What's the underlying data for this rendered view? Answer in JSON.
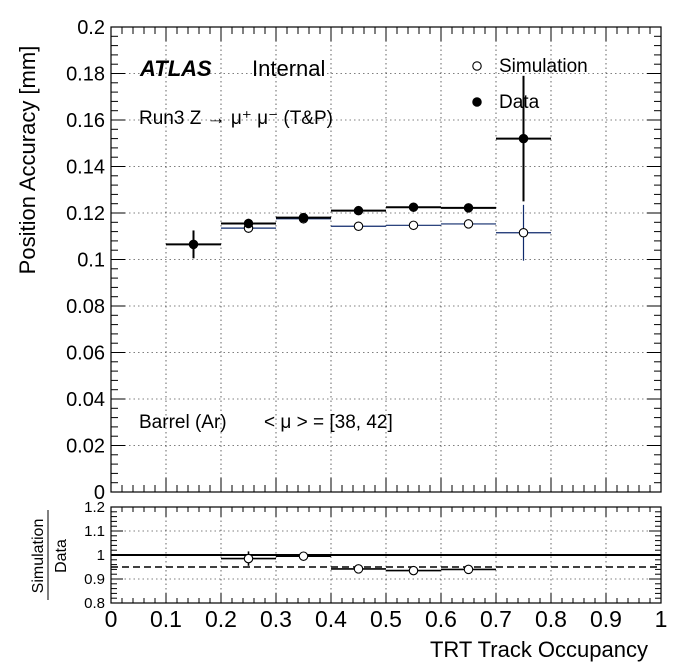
{
  "chart_data": [
    {
      "type": "scatter",
      "panel": "main",
      "ylabel": "Position Accuracy [mm]",
      "xlim": [
        0,
        1
      ],
      "ylim": [
        0,
        0.2
      ],
      "grid": true,
      "yticks": [
        "0",
        "0.02",
        "0.04",
        "0.06",
        "0.08",
        "0.1",
        "0.12",
        "0.14",
        "0.16",
        "0.18",
        "0.2"
      ],
      "legend_position": "top-right",
      "annotations": {
        "experiment": "ATLAS",
        "status": "Internal",
        "process": "Run3 Z → μ⁺ μ⁻ (T&P)",
        "region": "Barrel (Ar)",
        "pileup": "< μ > = [38, 42]"
      },
      "series": [
        {
          "name": "Simulation",
          "marker": "open-circle",
          "color": "#0f2a6b",
          "x": [
            0.25,
            0.35,
            0.45,
            0.55,
            0.65,
            0.75
          ],
          "xerr": 0.05,
          "y": [
            0.1135,
            0.1175,
            0.1143,
            0.1147,
            0.1153,
            0.1115
          ],
          "yerr": [
            0.002,
            0.0015,
            0.001,
            0.001,
            0.001,
            0.012
          ]
        },
        {
          "name": "Data",
          "marker": "filled-circle",
          "color": "#000000",
          "x": [
            0.15,
            0.25,
            0.35,
            0.45,
            0.55,
            0.65,
            0.75
          ],
          "xerr": 0.05,
          "y": [
            0.1065,
            0.1155,
            0.118,
            0.121,
            0.1225,
            0.1222,
            0.152
          ],
          "yerr": [
            0.006,
            0.002,
            0.0015,
            0.001,
            0.001,
            0.001,
            0.027
          ]
        }
      ]
    },
    {
      "type": "scatter",
      "panel": "ratio",
      "ylabel_numerator": "Simulation",
      "ylabel_denominator": "Data",
      "xlabel": "TRT Track Occupancy",
      "xlim": [
        0,
        1
      ],
      "ylim": [
        0.8,
        1.2
      ],
      "grid": true,
      "xticks": [
        "0",
        "0.1",
        "0.2",
        "0.3",
        "0.4",
        "0.5",
        "0.6",
        "0.7",
        "0.8",
        "0.9",
        "1"
      ],
      "yticks": [
        "0.8",
        "0.9",
        "1",
        "1.1",
        "1.2"
      ],
      "reference_lines": [
        {
          "y": 1.0,
          "style": "solid"
        },
        {
          "y": 0.95,
          "style": "dashed"
        }
      ],
      "series": [
        {
          "name": "Simulation / Data",
          "marker": "open-circle",
          "x": [
            0.25,
            0.35,
            0.45,
            0.55,
            0.65
          ],
          "xerr": 0.05,
          "y": [
            0.985,
            0.995,
            0.942,
            0.935,
            0.94
          ],
          "yerr": [
            0.03,
            0.004,
            0.004,
            0.004,
            0.012
          ]
        }
      ]
    }
  ]
}
